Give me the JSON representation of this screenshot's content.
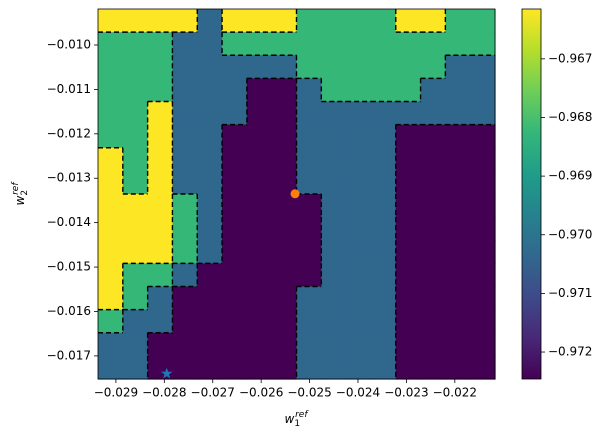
{
  "chart_data": {
    "type": "contourf",
    "xlabel": {
      "base": "w",
      "sub": "1",
      "sup": "ref"
    },
    "ylabel": {
      "base": "w",
      "sub": "2",
      "sup": "ref"
    },
    "xlim": [
      -0.02937,
      -0.02117
    ],
    "ylim": [
      -0.01752,
      -0.00919
    ],
    "xticks": [
      {
        "value": -0.029,
        "label": "−0.029"
      },
      {
        "value": -0.028,
        "label": "−0.028"
      },
      {
        "value": -0.027,
        "label": "−0.027"
      },
      {
        "value": -0.026,
        "label": "−0.026"
      },
      {
        "value": -0.025,
        "label": "−0.025"
      },
      {
        "value": -0.024,
        "label": "−0.024"
      },
      {
        "value": -0.023,
        "label": "−0.023"
      },
      {
        "value": -0.022,
        "label": "−0.022"
      }
    ],
    "yticks": [
      {
        "value": -0.017,
        "label": "−0.017"
      },
      {
        "value": -0.016,
        "label": "−0.016"
      },
      {
        "value": -0.015,
        "label": "−0.015"
      },
      {
        "value": -0.014,
        "label": "−0.014"
      },
      {
        "value": -0.013,
        "label": "−0.013"
      },
      {
        "value": -0.012,
        "label": "−0.012"
      },
      {
        "value": -0.011,
        "label": "−0.011"
      },
      {
        "value": -0.01,
        "label": "−0.010"
      }
    ],
    "levels": [
      -0.9725,
      -0.9715,
      -0.9695,
      -0.968,
      -0.9665
    ],
    "level_colors": [
      "#440154",
      "#30678d",
      "#35b778",
      "#fde724"
    ],
    "colormap": [
      "#440154",
      "#482878",
      "#3e4a89",
      "#31688e",
      "#26828e",
      "#1f9e89",
      "#35b779",
      "#6ece58",
      "#b5de2b",
      "#fde725"
    ],
    "clim": [
      -0.97246,
      -0.96615
    ],
    "cticks": [
      {
        "value": -0.972,
        "label": "−0.972"
      },
      {
        "value": -0.971,
        "label": "−0.971"
      },
      {
        "value": -0.97,
        "label": "−0.970"
      },
      {
        "value": -0.969,
        "label": "−0.969"
      },
      {
        "value": -0.968,
        "label": "−0.968"
      },
      {
        "value": -0.967,
        "label": "−0.967"
      }
    ],
    "z": [
      [
        -0.9668,
        -0.9668,
        -0.9668,
        -0.9668,
        -0.9703,
        -0.9668,
        -0.9668,
        -0.9668,
        -0.9688,
        -0.9688,
        -0.9688,
        -0.9688,
        -0.9668,
        -0.9668,
        -0.9688,
        -0.9688
      ],
      [
        -0.9688,
        -0.9688,
        -0.9688,
        -0.9703,
        -0.9703,
        -0.9688,
        -0.9688,
        -0.9688,
        -0.9688,
        -0.9688,
        -0.9688,
        -0.9688,
        -0.9688,
        -0.9688,
        -0.9688,
        -0.9688
      ],
      [
        -0.9688,
        -0.9688,
        -0.9688,
        -0.9703,
        -0.9703,
        -0.9703,
        -0.9703,
        -0.9703,
        -0.9688,
        -0.9688,
        -0.9688,
        -0.9688,
        -0.9688,
        -0.9688,
        -0.9703,
        -0.9703
      ],
      [
        -0.9688,
        -0.9688,
        -0.9688,
        -0.9703,
        -0.9703,
        -0.9703,
        -0.9722,
        -0.9722,
        -0.9703,
        -0.9688,
        -0.9688,
        -0.9688,
        -0.9688,
        -0.9703,
        -0.9703,
        -0.9703
      ],
      [
        -0.9688,
        -0.9688,
        -0.9668,
        -0.9703,
        -0.9703,
        -0.9703,
        -0.9722,
        -0.9722,
        -0.9703,
        -0.9703,
        -0.9703,
        -0.9703,
        -0.9703,
        -0.9703,
        -0.9703,
        -0.9703
      ],
      [
        -0.9688,
        -0.9688,
        -0.9668,
        -0.9703,
        -0.9703,
        -0.9722,
        -0.9722,
        -0.9722,
        -0.9703,
        -0.9703,
        -0.9703,
        -0.9703,
        -0.9722,
        -0.9722,
        -0.9722,
        -0.9722
      ],
      [
        -0.9668,
        -0.9688,
        -0.9668,
        -0.9703,
        -0.9703,
        -0.9722,
        -0.9722,
        -0.9722,
        -0.9703,
        -0.9703,
        -0.9703,
        -0.9703,
        -0.9722,
        -0.9722,
        -0.9722,
        -0.9722
      ],
      [
        -0.9668,
        -0.9688,
        -0.9668,
        -0.9703,
        -0.9703,
        -0.9722,
        -0.9722,
        -0.9722,
        -0.9703,
        -0.9703,
        -0.9703,
        -0.9703,
        -0.9722,
        -0.9722,
        -0.9722,
        -0.9722
      ],
      [
        -0.9668,
        -0.9668,
        -0.9668,
        -0.9688,
        -0.9703,
        -0.9722,
        -0.9722,
        -0.9722,
        -0.9722,
        -0.9703,
        -0.9703,
        -0.9703,
        -0.9722,
        -0.9722,
        -0.9722,
        -0.9722
      ],
      [
        -0.9668,
        -0.9668,
        -0.9668,
        -0.9688,
        -0.9703,
        -0.9722,
        -0.9722,
        -0.9722,
        -0.9722,
        -0.9703,
        -0.9703,
        -0.9703,
        -0.9722,
        -0.9722,
        -0.9722,
        -0.9722
      ],
      [
        -0.9668,
        -0.9668,
        -0.9668,
        -0.9688,
        -0.9703,
        -0.9722,
        -0.9722,
        -0.9722,
        -0.9722,
        -0.9703,
        -0.9703,
        -0.9703,
        -0.9722,
        -0.9722,
        -0.9722,
        -0.9722
      ],
      [
        -0.9668,
        -0.9688,
        -0.9688,
        -0.9703,
        -0.9722,
        -0.9722,
        -0.9722,
        -0.9722,
        -0.9722,
        -0.9703,
        -0.9703,
        -0.9703,
        -0.9722,
        -0.9722,
        -0.9722,
        -0.9722
      ],
      [
        -0.9668,
        -0.9688,
        -0.9703,
        -0.9722,
        -0.9722,
        -0.9722,
        -0.9722,
        -0.9722,
        -0.9703,
        -0.9703,
        -0.9703,
        -0.9703,
        -0.9722,
        -0.9722,
        -0.9722,
        -0.9722
      ],
      [
        -0.9688,
        -0.9703,
        -0.9703,
        -0.9722,
        -0.9722,
        -0.9722,
        -0.9722,
        -0.9722,
        -0.9703,
        -0.9703,
        -0.9703,
        -0.9703,
        -0.9722,
        -0.9722,
        -0.9722,
        -0.9722
      ],
      [
        -0.9703,
        -0.9703,
        -0.9722,
        -0.9722,
        -0.9722,
        -0.9722,
        -0.9722,
        -0.9722,
        -0.9703,
        -0.9703,
        -0.9703,
        -0.9703,
        -0.9722,
        -0.9722,
        -0.9722,
        -0.9722
      ],
      [
        -0.9703,
        -0.9703,
        -0.9722,
        -0.9722,
        -0.9722,
        -0.9722,
        -0.9722,
        -0.9722,
        -0.9703,
        -0.9703,
        -0.9703,
        -0.9703,
        -0.9722,
        -0.9722,
        -0.9722,
        -0.9722
      ]
    ],
    "markers": [
      {
        "x": -0.0253,
        "y": -0.01335,
        "color": "#ff7f0e",
        "shape": "circle"
      },
      {
        "x": -0.02795,
        "y": -0.0174,
        "color": "#1f77b4",
        "shape": "star"
      }
    ]
  }
}
